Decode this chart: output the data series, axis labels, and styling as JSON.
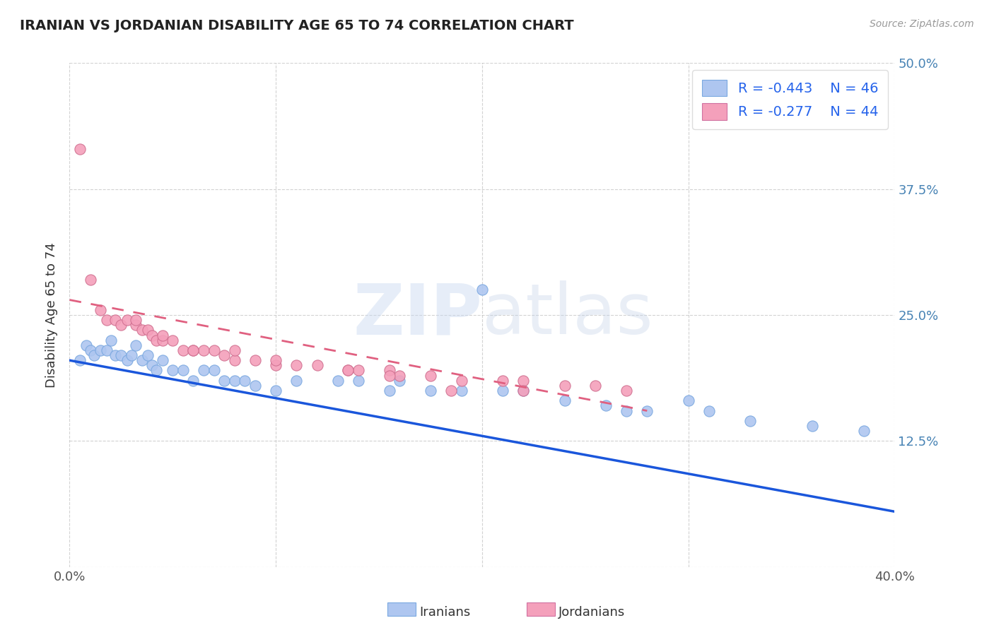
{
  "title": "IRANIAN VS JORDANIAN DISABILITY AGE 65 TO 74 CORRELATION CHART",
  "source_text": "Source: ZipAtlas.com",
  "ylabel": "Disability Age 65 to 74",
  "label_iranians": "Iranians",
  "label_jordanians": "Jordanians",
  "xlim": [
    0.0,
    0.4
  ],
  "ylim": [
    0.0,
    0.5
  ],
  "xtick_positions": [
    0.0,
    0.1,
    0.2,
    0.3,
    0.4
  ],
  "xtick_labels": [
    "0.0%",
    "",
    "",
    "",
    "40.0%"
  ],
  "ytick_positions": [
    0.0,
    0.125,
    0.25,
    0.375,
    0.5
  ],
  "ytick_labels_right": [
    "",
    "12.5%",
    "25.0%",
    "37.5%",
    "50.0%"
  ],
  "iranian_R": -0.443,
  "iranian_N": 46,
  "jordanian_R": -0.277,
  "jordanian_N": 44,
  "iranian_dot_color": "#aec6f0",
  "jordanian_dot_color": "#f4a0bb",
  "iranian_line_color": "#1a56db",
  "jordanian_line_color": "#e06080",
  "iranian_x": [
    0.005,
    0.008,
    0.01,
    0.012,
    0.015,
    0.018,
    0.02,
    0.022,
    0.025,
    0.028,
    0.03,
    0.032,
    0.035,
    0.038,
    0.04,
    0.042,
    0.045,
    0.05,
    0.055,
    0.06,
    0.065,
    0.07,
    0.075,
    0.08,
    0.085,
    0.09,
    0.1,
    0.11,
    0.13,
    0.14,
    0.155,
    0.16,
    0.175,
    0.19,
    0.21,
    0.22,
    0.24,
    0.26,
    0.27,
    0.28,
    0.31,
    0.33,
    0.36,
    0.385,
    0.2,
    0.3
  ],
  "iranian_y": [
    0.205,
    0.22,
    0.215,
    0.21,
    0.215,
    0.215,
    0.225,
    0.21,
    0.21,
    0.205,
    0.21,
    0.22,
    0.205,
    0.21,
    0.2,
    0.195,
    0.205,
    0.195,
    0.195,
    0.185,
    0.195,
    0.195,
    0.185,
    0.185,
    0.185,
    0.18,
    0.175,
    0.185,
    0.185,
    0.185,
    0.175,
    0.185,
    0.175,
    0.175,
    0.175,
    0.175,
    0.165,
    0.16,
    0.155,
    0.155,
    0.155,
    0.145,
    0.14,
    0.135,
    0.275,
    0.165
  ],
  "jordanian_x": [
    0.005,
    0.01,
    0.015,
    0.018,
    0.022,
    0.025,
    0.028,
    0.032,
    0.035,
    0.038,
    0.04,
    0.042,
    0.045,
    0.05,
    0.055,
    0.06,
    0.065,
    0.07,
    0.075,
    0.08,
    0.09,
    0.1,
    0.11,
    0.12,
    0.135,
    0.14,
    0.155,
    0.16,
    0.175,
    0.19,
    0.21,
    0.22,
    0.24,
    0.255,
    0.27,
    0.032,
    0.045,
    0.06,
    0.08,
    0.1,
    0.135,
    0.155,
    0.185,
    0.22
  ],
  "jordanian_y": [
    0.415,
    0.285,
    0.255,
    0.245,
    0.245,
    0.24,
    0.245,
    0.24,
    0.235,
    0.235,
    0.23,
    0.225,
    0.225,
    0.225,
    0.215,
    0.215,
    0.215,
    0.215,
    0.21,
    0.205,
    0.205,
    0.2,
    0.2,
    0.2,
    0.195,
    0.195,
    0.195,
    0.19,
    0.19,
    0.185,
    0.185,
    0.185,
    0.18,
    0.18,
    0.175,
    0.245,
    0.23,
    0.215,
    0.215,
    0.205,
    0.195,
    0.19,
    0.175,
    0.175
  ],
  "iranian_line_x0": 0.0,
  "iranian_line_y0": 0.205,
  "iranian_line_x1": 0.4,
  "iranian_line_y1": 0.055,
  "jordanian_line_x0": 0.0,
  "jordanian_line_y0": 0.265,
  "jordanian_line_x1": 0.28,
  "jordanian_line_y1": 0.155
}
